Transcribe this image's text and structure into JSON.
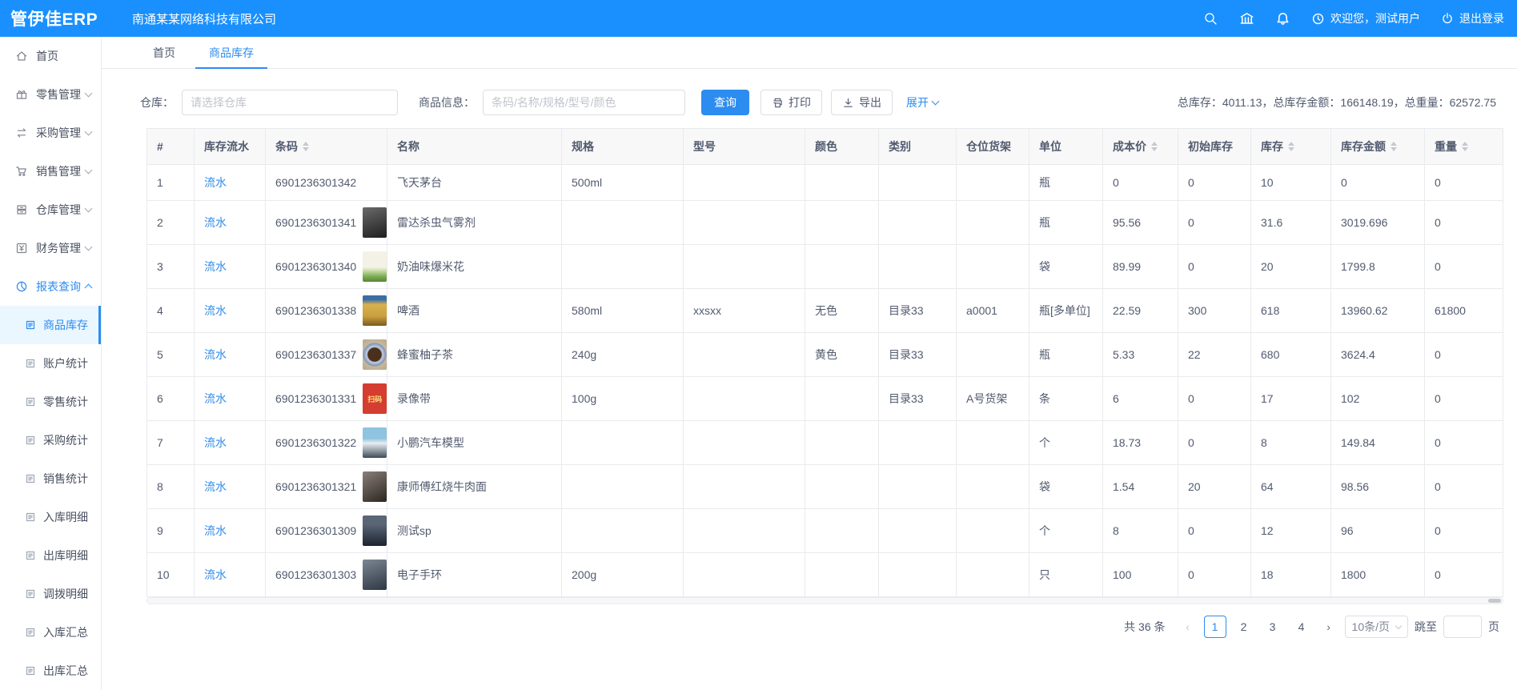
{
  "colors": {
    "accent": "#2d8cf0",
    "header_blue": "#1a90fe",
    "link_blue": "#2d8cf0"
  },
  "header": {
    "logo": "管伊佳ERP",
    "company": "南通某某网络科技有限公司",
    "welcome": "欢迎您，测试用户",
    "logout": "退出登录"
  },
  "sidebar": {
    "items": [
      {
        "label": "首页",
        "icon": "home-icon",
        "chevron": null
      },
      {
        "label": "零售管理",
        "icon": "retail-icon",
        "chevron": "down"
      },
      {
        "label": "采购管理",
        "icon": "purchase-icon",
        "chevron": "down"
      },
      {
        "label": "销售管理",
        "icon": "sales-icon",
        "chevron": "down"
      },
      {
        "label": "仓库管理",
        "icon": "warehouse-icon",
        "chevron": "down"
      },
      {
        "label": "财务管理",
        "icon": "finance-icon",
        "chevron": "down"
      },
      {
        "label": "报表查询",
        "icon": "report-icon",
        "chevron": "up",
        "expanded": true
      }
    ],
    "subitems": [
      "商品库存",
      "账户统计",
      "零售统计",
      "采购统计",
      "销售统计",
      "入库明细",
      "出库明细",
      "调拨明细",
      "入库汇总",
      "出库汇总"
    ],
    "active_subitem": "商品库存"
  },
  "tabs": {
    "items": [
      "首页",
      "商品库存"
    ],
    "active": "商品库存"
  },
  "filters": {
    "warehouse_label": "仓库：",
    "warehouse_placeholder": "请选择仓库",
    "product_label": "商品信息：",
    "product_placeholder": "条码/名称/规格/型号/颜色",
    "search_button": "查询",
    "print_button": "打印",
    "export_button": "导出",
    "expand_link": "展开",
    "totals": "总库存：4011.13，总库存金额：166148.19，总重量：62572.75"
  },
  "table": {
    "columns": [
      {
        "label": "#"
      },
      {
        "label": "库存流水"
      },
      {
        "label": "条码",
        "sortable": true
      },
      {
        "label": "名称"
      },
      {
        "label": "规格"
      },
      {
        "label": "型号"
      },
      {
        "label": "颜色"
      },
      {
        "label": "类别"
      },
      {
        "label": "仓位货架"
      },
      {
        "label": "单位"
      },
      {
        "label": "成本价",
        "sortable": true
      },
      {
        "label": "初始库存"
      },
      {
        "label": "库存",
        "sortable": true
      },
      {
        "label": "库存金额",
        "sortable": true
      },
      {
        "label": "重量",
        "sortable": true
      }
    ],
    "flow_link_label": "流水",
    "rows": [
      {
        "idx": "1",
        "barcode": "6901236301342",
        "thumb": null,
        "name": "飞天茅台",
        "spec": "500ml",
        "model": "",
        "color": "",
        "category": "",
        "shelf": "",
        "unit": "瓶",
        "cost": "0",
        "init": "0",
        "stock": "10",
        "amount": "0",
        "weight": "0"
      },
      {
        "idx": "2",
        "barcode": "6901236301341",
        "thumb": "dark",
        "name": "雷达杀虫气雾剂",
        "spec": "",
        "model": "",
        "color": "",
        "category": "",
        "shelf": "",
        "unit": "瓶",
        "cost": "95.56",
        "init": "0",
        "stock": "31.6",
        "amount": "3019.696",
        "weight": "0"
      },
      {
        "idx": "3",
        "barcode": "6901236301340",
        "thumb": "popcorn",
        "name": "奶油味爆米花",
        "spec": "",
        "model": "",
        "color": "",
        "category": "",
        "shelf": "",
        "unit": "袋",
        "cost": "89.99",
        "init": "0",
        "stock": "20",
        "amount": "1799.8",
        "weight": "0"
      },
      {
        "idx": "4",
        "barcode": "6901236301338",
        "thumb": "beer",
        "name": "啤酒",
        "spec": "580ml",
        "model": "xxsxx",
        "color": "无色",
        "category": "目录33",
        "shelf": "a0001",
        "unit": "瓶[多单位]",
        "cost": "22.59",
        "init": "300",
        "stock": "618",
        "amount": "13960.62",
        "weight": "61800"
      },
      {
        "idx": "5",
        "barcode": "6901236301337",
        "thumb": "tea",
        "name": "蜂蜜柚子茶",
        "spec": "240g",
        "model": "",
        "color": "黄色",
        "category": "目录33",
        "shelf": "",
        "unit": "瓶",
        "cost": "5.33",
        "init": "22",
        "stock": "680",
        "amount": "3624.4",
        "weight": "0"
      },
      {
        "idx": "6",
        "barcode": "6901236301331",
        "thumb": "scan",
        "name": "录像带",
        "spec": "100g",
        "model": "",
        "color": "",
        "category": "目录33",
        "shelf": "A号货架",
        "unit": "条",
        "cost": "6",
        "init": "0",
        "stock": "17",
        "amount": "102",
        "weight": "0"
      },
      {
        "idx": "7",
        "barcode": "6901236301322",
        "thumb": "car",
        "name": "小鹏汽车模型",
        "spec": "",
        "model": "",
        "color": "",
        "category": "",
        "shelf": "",
        "unit": "个",
        "cost": "18.73",
        "init": "0",
        "stock": "8",
        "amount": "149.84",
        "weight": "0"
      },
      {
        "idx": "8",
        "barcode": "6901236301321",
        "thumb": "noodle",
        "name": "康师傅红烧牛肉面",
        "spec": "",
        "model": "",
        "color": "",
        "category": "",
        "shelf": "",
        "unit": "袋",
        "cost": "1.54",
        "init": "20",
        "stock": "64",
        "amount": "98.56",
        "weight": "0"
      },
      {
        "idx": "9",
        "barcode": "6901236301309",
        "thumb": "sp",
        "name": "测试sp",
        "spec": "",
        "model": "",
        "color": "",
        "category": "",
        "shelf": "",
        "unit": "个",
        "cost": "8",
        "init": "0",
        "stock": "12",
        "amount": "96",
        "weight": "0"
      },
      {
        "idx": "10",
        "barcode": "6901236301303",
        "thumb": "band",
        "name": "电子手环",
        "spec": "200g",
        "model": "",
        "color": "",
        "category": "",
        "shelf": "",
        "unit": "只",
        "cost": "100",
        "init": "0",
        "stock": "18",
        "amount": "1800",
        "weight": "0"
      }
    ],
    "scan_thumb_text": "扫码"
  },
  "pagination": {
    "total": "共 36 条",
    "prev": "‹",
    "next": "›",
    "pages": [
      "1",
      "2",
      "3",
      "4"
    ],
    "current": "1",
    "page_size": "10条/页",
    "jump_label": "跳至",
    "jump_suffix": "页"
  }
}
